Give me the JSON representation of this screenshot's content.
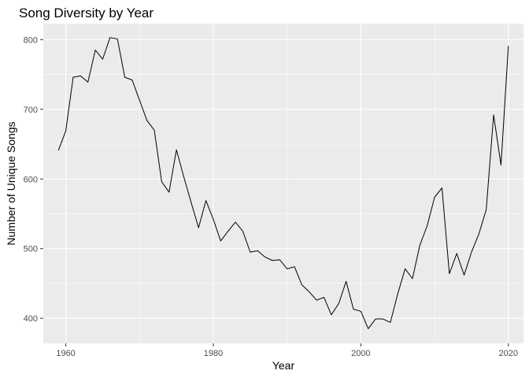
{
  "chart_data": {
    "type": "line",
    "title": "Song Diversity by Year",
    "xlabel": "Year",
    "ylabel": "Number of Unique Songs",
    "xlim": [
      1956.95,
      2022.05
    ],
    "ylim": [
      364,
      823
    ],
    "x_ticks": [
      1960,
      1980,
      2000,
      2020
    ],
    "y_ticks": [
      400,
      500,
      600,
      700,
      800
    ],
    "x_tick_labels": [
      "1960",
      "1980",
      "2000",
      "2020"
    ],
    "y_tick_labels": [
      "400",
      "500",
      "600",
      "700",
      "800"
    ],
    "grid": true,
    "legend": "none",
    "colors": {
      "panel_bg": "#EBEBEB",
      "grid": "#FFFFFF",
      "line": "#000000",
      "tick": "#4D4D4D"
    },
    "series": [
      {
        "x": [
          1959,
          1960,
          1961,
          1962,
          1963,
          1964,
          1965,
          1966,
          1967,
          1968,
          1969,
          1970,
          1971,
          1972,
          1973,
          1974,
          1975,
          1976,
          1977,
          1978,
          1979,
          1980,
          1981,
          1982,
          1983,
          1984,
          1985,
          1986,
          1987,
          1988,
          1989,
          1990,
          1991,
          1992,
          1993,
          1994,
          1995,
          1996,
          1997,
          1998,
          1999,
          2000,
          2001,
          2002,
          2003,
          2004,
          2005,
          2006,
          2007,
          2008,
          2009,
          2010,
          2011,
          2012,
          2013,
          2014,
          2015,
          2016,
          2017,
          2018,
          2019,
          2020
        ],
        "values": [
          641,
          669,
          746,
          748,
          739,
          785,
          772,
          803,
          801,
          746,
          742,
          713,
          684,
          670,
          596,
          581,
          642,
          603,
          566,
          530,
          569,
          542,
          511,
          525,
          538,
          525,
          495,
          497,
          488,
          483,
          484,
          471,
          474,
          448,
          438,
          426,
          430,
          405,
          421,
          453,
          413,
          410,
          385,
          399,
          399,
          394,
          435,
          471,
          457,
          505,
          533,
          574,
          587,
          464,
          493,
          462,
          495,
          521,
          556,
          692,
          620,
          791
        ]
      }
    ]
  }
}
